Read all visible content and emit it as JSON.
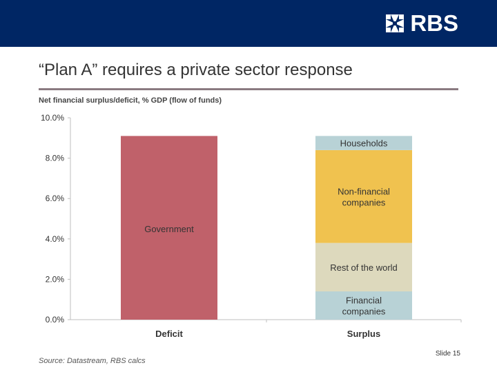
{
  "header": {
    "logo_text": "RBS",
    "logo_icon": "rbs-daisywheel-icon",
    "color": "#002664"
  },
  "title": "“Plan A” requires a private sector response",
  "subtitle": "Net financial surplus/deficit, % GDP (flow of funds)",
  "chart_data": {
    "type": "bar",
    "stacked": true,
    "categories": [
      "Deficit",
      "Surplus"
    ],
    "ylim": [
      0,
      10
    ],
    "yticks": [
      "0.0%",
      "2.0%",
      "4.0%",
      "6.0%",
      "8.0%",
      "10.0%"
    ],
    "ytick_values": [
      0,
      2,
      4,
      6,
      8,
      10
    ],
    "grid": false,
    "series": [
      {
        "name": "Government",
        "category": "Deficit",
        "start": 0,
        "value": 9.1,
        "color": "#c0616a"
      },
      {
        "name": "Financial companies",
        "category": "Surplus",
        "start": 0,
        "value": 1.4,
        "color": "#b8d2d6"
      },
      {
        "name": "Rest of the world",
        "category": "Surplus",
        "start": 1.4,
        "value": 2.4,
        "color": "#ddd9bd"
      },
      {
        "name": "Non-financial companies",
        "category": "Surplus",
        "start": 3.8,
        "value": 4.6,
        "color": "#f0c24f"
      },
      {
        "name": "Households",
        "category": "Surplus",
        "start": 8.4,
        "value": 0.7,
        "color": "#b8d2d6"
      }
    ],
    "segment_labels": [
      [
        "Government"
      ],
      [
        "Financial",
        "companies"
      ],
      [
        "Rest of the world"
      ],
      [
        "Non-financial",
        "companies"
      ],
      [
        "Households"
      ]
    ]
  },
  "footer": {
    "source": "Source: Datastream, RBS calcs",
    "slide": "Slide 15"
  }
}
